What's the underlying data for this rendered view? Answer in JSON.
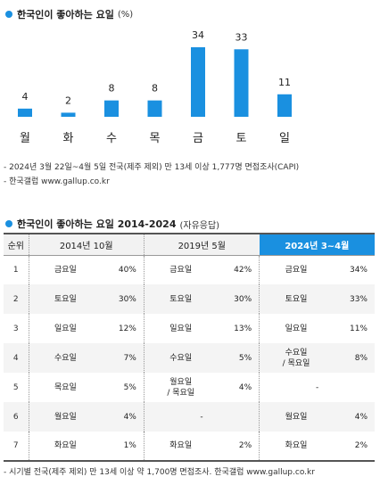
{
  "chart_title": {
    "text": "한국인이 좋아하는 요일",
    "unit": "(%)"
  },
  "chart_data": {
    "type": "bar",
    "title": "한국인이 좋아하는 요일",
    "categories": [
      "월",
      "화",
      "수",
      "목",
      "금",
      "토",
      "일"
    ],
    "values": [
      4,
      2,
      8,
      8,
      34,
      33,
      11
    ],
    "ylim": [
      0,
      34
    ],
    "bar_color": "#1a90e0",
    "grid": false,
    "xlabel": "",
    "ylabel": ""
  },
  "notes": {
    "survey": "- 2024년 3월 22일~4월 5일 전국(제주 제외) 만 13세 이상 1,777명 면접조사(CAPI)",
    "source": "- 한국갤럽 www.gallup.co.kr"
  },
  "table_title": {
    "text": "한국인이 좋아하는 요일 2014-2024",
    "unit": "(자유응답)"
  },
  "table": {
    "headers": [
      "순위",
      "2014년 10월",
      "2019년 5월",
      "2024년 3~4월"
    ],
    "rows": [
      {
        "rank": "1",
        "cells": [
          {
            "day": "금요일",
            "pct": "40%"
          },
          {
            "day": "금요일",
            "pct": "42%"
          },
          {
            "day": "금요일",
            "pct": "34%"
          }
        ]
      },
      {
        "rank": "2",
        "cells": [
          {
            "day": "토요일",
            "pct": "30%"
          },
          {
            "day": "토요일",
            "pct": "30%"
          },
          {
            "day": "토요일",
            "pct": "33%"
          }
        ]
      },
      {
        "rank": "3",
        "cells": [
          {
            "day": "일요일",
            "pct": "12%"
          },
          {
            "day": "일요일",
            "pct": "13%"
          },
          {
            "day": "일요일",
            "pct": "11%"
          }
        ]
      },
      {
        "rank": "4",
        "cells": [
          {
            "day": "수요일",
            "pct": "7%"
          },
          {
            "day": "수요일",
            "pct": "5%"
          },
          {
            "day": "수요일 / 목요일",
            "pct": "8%"
          }
        ]
      },
      {
        "rank": "5",
        "cells": [
          {
            "day": "목요일",
            "pct": "5%"
          },
          {
            "day": "월요일 / 목요일",
            "pct": "4%"
          },
          {
            "day": "-",
            "pct": ""
          }
        ]
      },
      {
        "rank": "6",
        "cells": [
          {
            "day": "월요일",
            "pct": "4%"
          },
          {
            "day": "-",
            "pct": ""
          },
          {
            "day": "월요일",
            "pct": "4%"
          }
        ]
      },
      {
        "rank": "7",
        "cells": [
          {
            "day": "화요일",
            "pct": "1%"
          },
          {
            "day": "화요일",
            "pct": "2%"
          },
          {
            "day": "화요일",
            "pct": "2%"
          }
        ]
      }
    ]
  },
  "footnote": "- 시기별 전국(제주 제외) 만 13세 이상 약 1,700명 면접조사. 한국갤럽 www.gallup.co.kr",
  "colors": {
    "accent": "#1a90e0",
    "header_bg": "#f2f2f2",
    "alt_row_bg": "#f4f4f4"
  }
}
